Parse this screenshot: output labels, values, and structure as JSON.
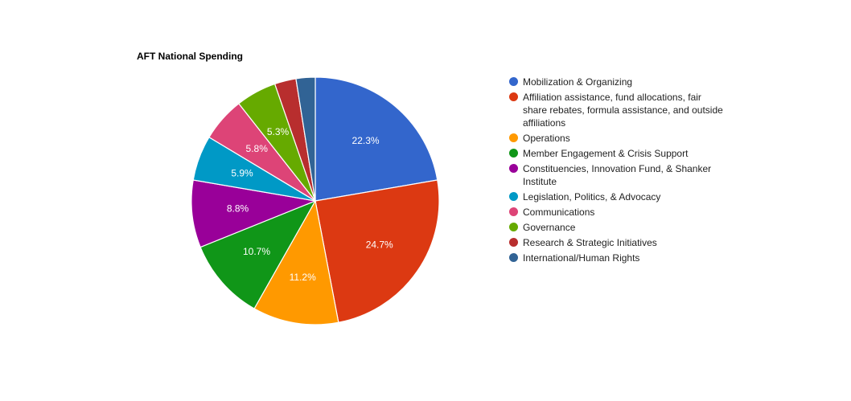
{
  "chart_data": {
    "type": "pie",
    "title": "AFT National Spending",
    "slices": [
      {
        "label": "Mobilization & Organizing",
        "value": 22.3,
        "display": "22.3%",
        "color": "#3366cc"
      },
      {
        "label": "Affiliation assistance, fund allocations, fair share rebates, formula assistance, and outside affiliations",
        "value": 24.7,
        "display": "24.7%",
        "color": "#dc3912"
      },
      {
        "label": "Operations",
        "value": 11.2,
        "display": "11.2%",
        "color": "#ff9900"
      },
      {
        "label": "Member Engagement & Crisis Support",
        "value": 10.7,
        "display": "10.7%",
        "color": "#109618"
      },
      {
        "label": "Constituencies, Innovation Fund, & Shanker Institute",
        "value": 8.8,
        "display": "8.8%",
        "color": "#990099"
      },
      {
        "label": "Legislation, Politics, & Advocacy",
        "value": 5.9,
        "display": "5.9%",
        "color": "#0099c6"
      },
      {
        "label": "Communications",
        "value": 5.8,
        "display": "5.8%",
        "color": "#dd4477"
      },
      {
        "label": "Governance",
        "value": 5.3,
        "display": "5.3%",
        "color": "#66aa00"
      },
      {
        "label": "Research & Strategic Initiatives",
        "value": 2.8,
        "display": "",
        "color": "#b82e2e"
      },
      {
        "label": "International/Human Rights",
        "value": 2.5,
        "display": "",
        "color": "#316395"
      }
    ],
    "legend_position": "right"
  }
}
